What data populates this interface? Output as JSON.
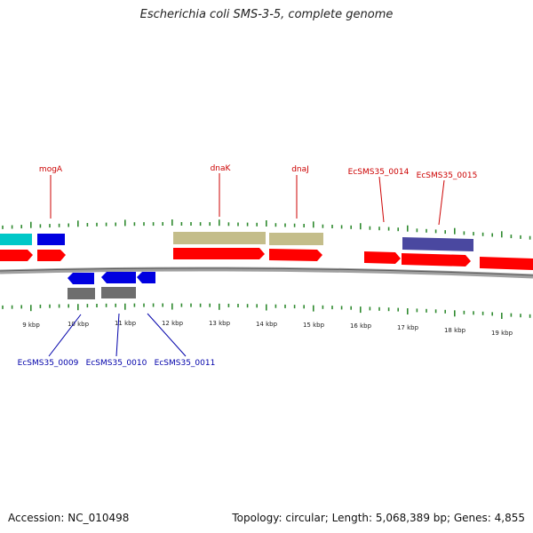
{
  "title": "Escherichia coli SMS-3-5, complete genome",
  "accession": "Accession: NC_010498",
  "summary": "Topology: circular; Length: 5,068,389 bp; Genes: 4,855",
  "colors": {
    "forward_gene": "#ff0000",
    "reverse_gene": "#0000ff",
    "label_forward": "#cc0000",
    "label_reverse": "#0000aa",
    "tick": "#2f8a2f",
    "backbone": "#9a9a9a",
    "cyan_feature": "#00c8c8",
    "blue_feature": "#0000e0",
    "khaki_feature": "#c4bd8a",
    "purple_feature": "#4a48a0",
    "gray_feature": "#6e6e6e"
  },
  "kbp_ticks": [
    "9 kbp",
    "10 kbp",
    "11 kbp",
    "12 kbp",
    "13 kbp",
    "14 kbp",
    "15 kbp",
    "16 kbp",
    "17 kbp",
    "18 kbp",
    "19 kbp"
  ],
  "top_labels": [
    "mogA",
    "dnaK",
    "dnaJ",
    "EcSMS35_0014",
    "EcSMS35_0015"
  ],
  "bottom_labels": [
    "EcSMS35_0009",
    "EcSMS35_0010",
    "EcSMS35_0011"
  ]
}
